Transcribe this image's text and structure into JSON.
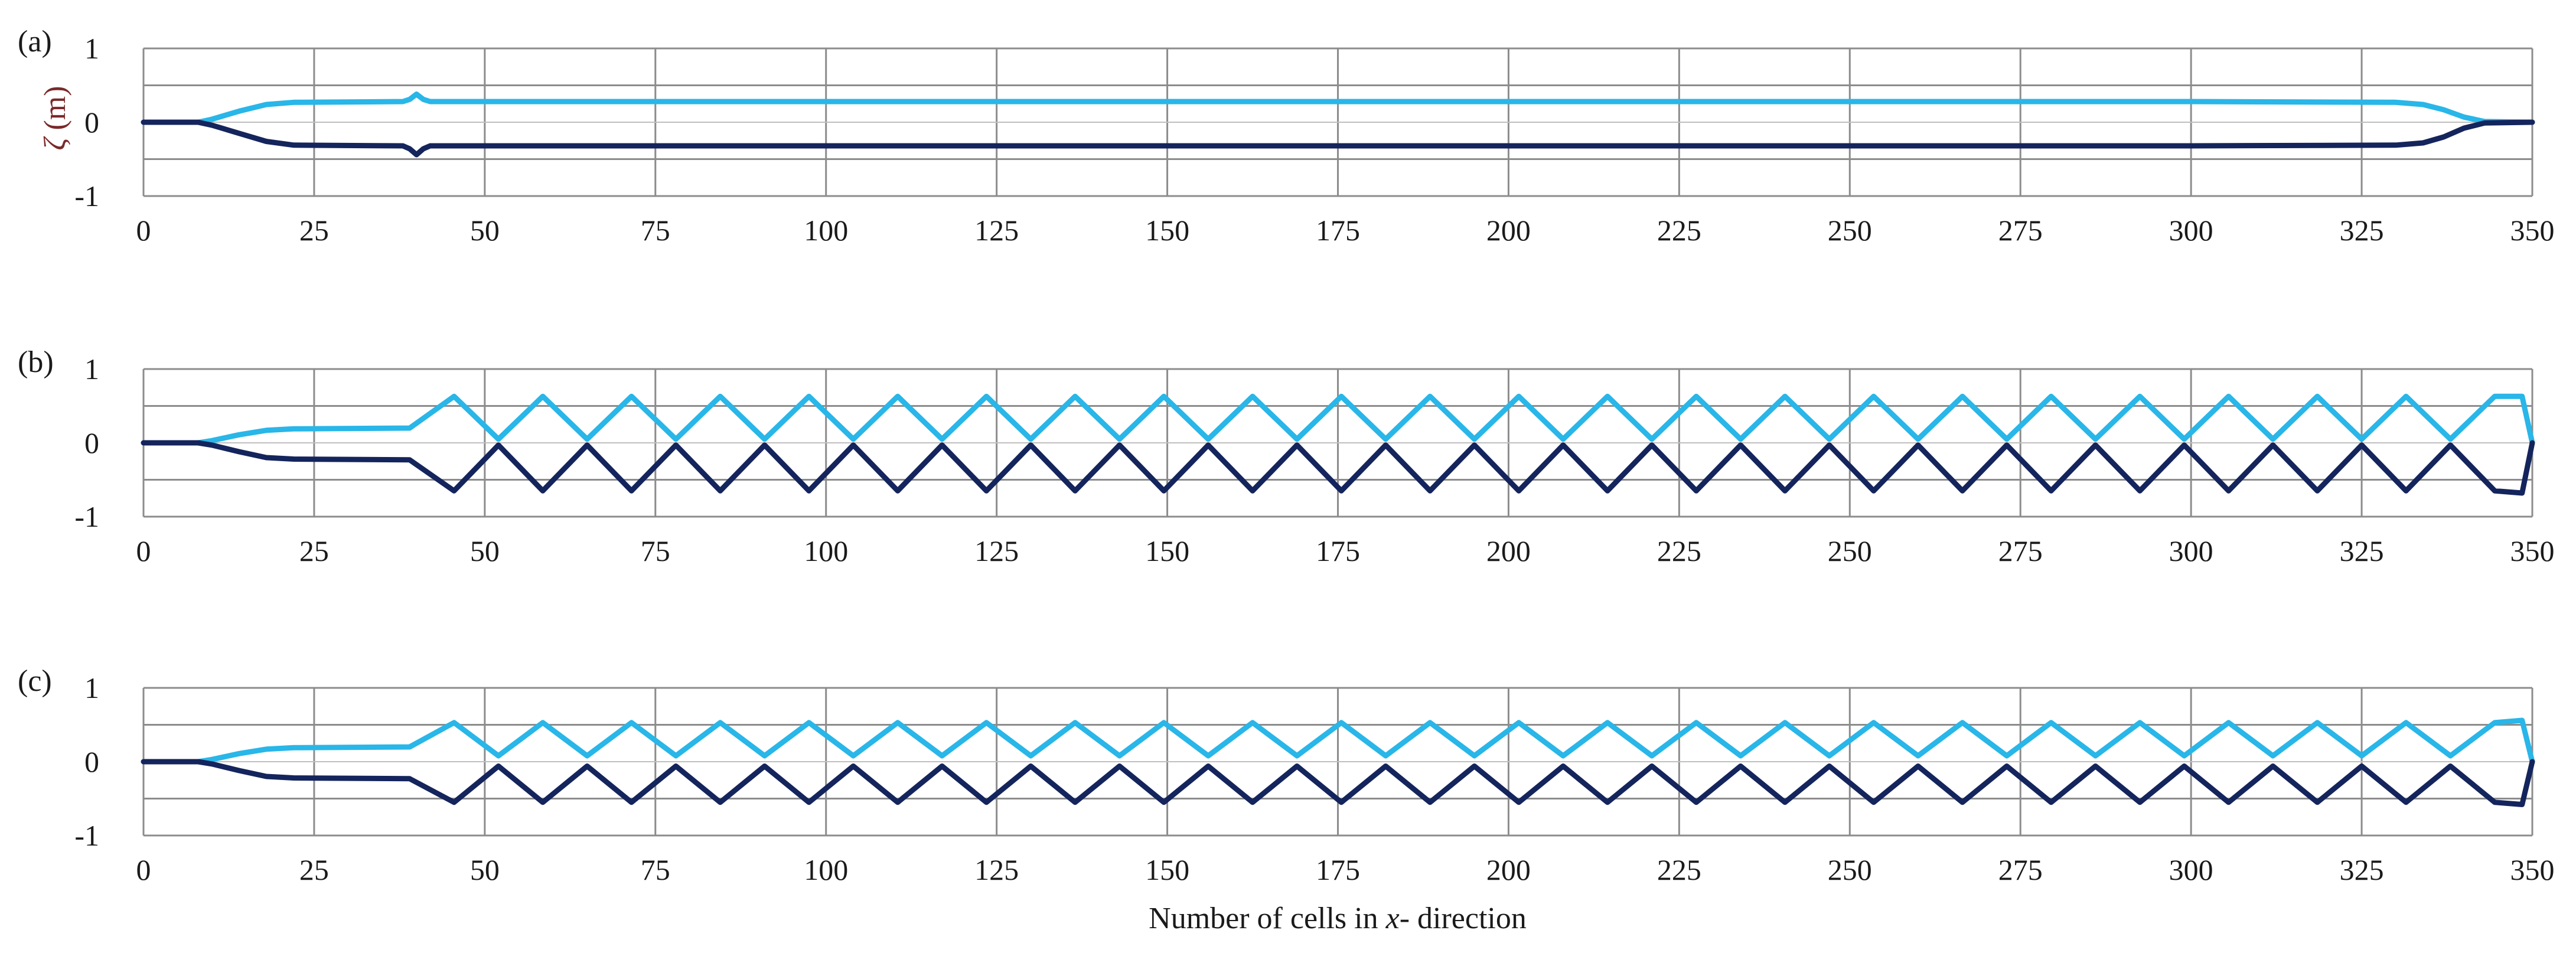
{
  "figure": {
    "xlabel_pre": "Number of cells in ",
    "xlabel_var": "x",
    "xlabel_post": "- direction",
    "ylabel_var": "ζ",
    "ylabel_unit": " (m)"
  },
  "chart_data": [
    {
      "type": "line",
      "panel_label": "(a)",
      "ylabel": "ζ (m)",
      "xlim": [
        0,
        350
      ],
      "ylim": [
        -1,
        1
      ],
      "xticks": [
        "0",
        "25",
        "50",
        "75",
        "100",
        "125",
        "150",
        "175",
        "200",
        "225",
        "250",
        "275",
        "300",
        "325",
        "350"
      ],
      "yticks": [
        "1",
        "0",
        "-1"
      ],
      "grid": {
        "x_step": 25,
        "y_lines": [
          1,
          0.5,
          -0.5,
          -1
        ]
      },
      "colors": {
        "upper": "#29b6e8",
        "lower": "#14245c"
      },
      "series": [
        {
          "role": "upper",
          "x": [
            0,
            8,
            10,
            14,
            18,
            22,
            38,
            39,
            40,
            41,
            42,
            100,
            200,
            300,
            330,
            334,
            337,
            340,
            343,
            350
          ],
          "y": [
            0,
            0,
            0.04,
            0.15,
            0.24,
            0.27,
            0.28,
            0.31,
            0.38,
            0.31,
            0.28,
            0.28,
            0.28,
            0.28,
            0.27,
            0.24,
            0.17,
            0.07,
            0.01,
            0
          ]
        },
        {
          "role": "lower",
          "x": [
            0,
            8,
            10,
            14,
            18,
            22,
            38,
            39,
            40,
            41,
            42,
            100,
            200,
            300,
            330,
            334,
            337,
            340,
            343,
            350
          ],
          "y": [
            0,
            0,
            -0.04,
            -0.15,
            -0.26,
            -0.31,
            -0.32,
            -0.36,
            -0.44,
            -0.36,
            -0.32,
            -0.32,
            -0.32,
            -0.32,
            -0.31,
            -0.28,
            -0.2,
            -0.08,
            -0.01,
            0
          ]
        }
      ]
    },
    {
      "type": "line",
      "panel_label": "(b)",
      "xlim": [
        0,
        350
      ],
      "ylim": [
        -1,
        1
      ],
      "xticks": [
        "0",
        "25",
        "50",
        "75",
        "100",
        "125",
        "150",
        "175",
        "200",
        "225",
        "250",
        "275",
        "300",
        "325",
        "350"
      ],
      "yticks": [
        "1",
        "0",
        "-1"
      ],
      "grid": {
        "x_step": 25,
        "y_lines": [
          1,
          0.5,
          -0.5,
          -1
        ]
      },
      "colors": {
        "upper": "#29b6e8",
        "lower": "#14245c"
      },
      "series": [
        {
          "role": "upper",
          "x": [
            0,
            8,
            10,
            14,
            18,
            22,
            39,
            45.5,
            52,
            58.5,
            65,
            71.5,
            78,
            84.5,
            91,
            97.5,
            104,
            110.5,
            117,
            123.5,
            130,
            136.5,
            143,
            149.5,
            156,
            162.5,
            169,
            175.5,
            182,
            188.5,
            195,
            201.5,
            208,
            214.5,
            221,
            227.5,
            234,
            240.5,
            247,
            253.5,
            260,
            266.5,
            273,
            279.5,
            286,
            292.5,
            299,
            305.5,
            312,
            318.5,
            325,
            331.5,
            338,
            344.5,
            348.5,
            350
          ],
          "y": [
            0,
            0,
            0.03,
            0.11,
            0.17,
            0.19,
            0.2,
            0.63,
            0.05,
            0.63,
            0.05,
            0.63,
            0.05,
            0.63,
            0.05,
            0.63,
            0.05,
            0.63,
            0.05,
            0.63,
            0.05,
            0.63,
            0.05,
            0.63,
            0.05,
            0.63,
            0.05,
            0.63,
            0.05,
            0.63,
            0.05,
            0.63,
            0.05,
            0.63,
            0.05,
            0.63,
            0.05,
            0.63,
            0.05,
            0.63,
            0.05,
            0.63,
            0.05,
            0.63,
            0.05,
            0.63,
            0.05,
            0.63,
            0.05,
            0.63,
            0.05,
            0.63,
            0.05,
            0.63,
            0.63,
            0.0
          ]
        },
        {
          "role": "lower",
          "x": [
            0,
            8,
            10,
            14,
            18,
            22,
            39,
            45.5,
            52,
            58.5,
            65,
            71.5,
            78,
            84.5,
            91,
            97.5,
            104,
            110.5,
            117,
            123.5,
            130,
            136.5,
            143,
            149.5,
            156,
            162.5,
            169,
            175.5,
            182,
            188.5,
            195,
            201.5,
            208,
            214.5,
            221,
            227.5,
            234,
            240.5,
            247,
            253.5,
            260,
            266.5,
            273,
            279.5,
            286,
            292.5,
            299,
            305.5,
            312,
            318.5,
            325,
            331.5,
            338,
            344.5,
            348.5,
            350
          ],
          "y": [
            0,
            0,
            -0.03,
            -0.12,
            -0.2,
            -0.22,
            -0.23,
            -0.65,
            -0.03,
            -0.65,
            -0.03,
            -0.65,
            -0.03,
            -0.65,
            -0.03,
            -0.65,
            -0.03,
            -0.65,
            -0.03,
            -0.65,
            -0.03,
            -0.65,
            -0.03,
            -0.65,
            -0.03,
            -0.65,
            -0.03,
            -0.65,
            -0.03,
            -0.65,
            -0.03,
            -0.65,
            -0.03,
            -0.65,
            -0.03,
            -0.65,
            -0.03,
            -0.65,
            -0.03,
            -0.65,
            -0.03,
            -0.65,
            -0.03,
            -0.65,
            -0.03,
            -0.65,
            -0.03,
            -0.65,
            -0.03,
            -0.65,
            -0.03,
            -0.65,
            -0.03,
            -0.65,
            -0.68,
            0.0
          ]
        }
      ]
    },
    {
      "type": "line",
      "panel_label": "(c)",
      "xlim": [
        0,
        350
      ],
      "ylim": [
        -1,
        1
      ],
      "xticks": [
        "0",
        "25",
        "50",
        "75",
        "100",
        "125",
        "150",
        "175",
        "200",
        "225",
        "250",
        "275",
        "300",
        "325",
        "350"
      ],
      "yticks": [
        "1",
        "0",
        "-1"
      ],
      "grid": {
        "x_step": 25,
        "y_lines": [
          1,
          0.5,
          -0.5,
          -1
        ]
      },
      "colors": {
        "upper": "#29b6e8",
        "lower": "#14245c"
      },
      "series": [
        {
          "role": "upper",
          "x": [
            0,
            8,
            10,
            14,
            18,
            22,
            39,
            45.5,
            52,
            58.5,
            65,
            71.5,
            78,
            84.5,
            91,
            97.5,
            104,
            110.5,
            117,
            123.5,
            130,
            136.5,
            143,
            149.5,
            156,
            162.5,
            169,
            175.5,
            182,
            188.5,
            195,
            201.5,
            208,
            214.5,
            221,
            227.5,
            234,
            240.5,
            247,
            253.5,
            260,
            266.5,
            273,
            279.5,
            286,
            292.5,
            299,
            305.5,
            312,
            318.5,
            325,
            331.5,
            338,
            344.5,
            348.5,
            350
          ],
          "y": [
            0,
            0,
            0.03,
            0.11,
            0.17,
            0.19,
            0.2,
            0.53,
            0.08,
            0.53,
            0.08,
            0.53,
            0.08,
            0.53,
            0.08,
            0.53,
            0.08,
            0.53,
            0.08,
            0.53,
            0.08,
            0.53,
            0.08,
            0.53,
            0.08,
            0.53,
            0.08,
            0.53,
            0.08,
            0.53,
            0.08,
            0.53,
            0.08,
            0.53,
            0.08,
            0.53,
            0.08,
            0.53,
            0.08,
            0.53,
            0.08,
            0.53,
            0.08,
            0.53,
            0.08,
            0.53,
            0.08,
            0.53,
            0.08,
            0.53,
            0.08,
            0.53,
            0.08,
            0.53,
            0.56,
            0.0
          ]
        },
        {
          "role": "lower",
          "x": [
            0,
            8,
            10,
            14,
            18,
            22,
            39,
            45.5,
            52,
            58.5,
            65,
            71.5,
            78,
            84.5,
            91,
            97.5,
            104,
            110.5,
            117,
            123.5,
            130,
            136.5,
            143,
            149.5,
            156,
            162.5,
            169,
            175.5,
            182,
            188.5,
            195,
            201.5,
            208,
            214.5,
            221,
            227.5,
            234,
            240.5,
            247,
            253.5,
            260,
            266.5,
            273,
            279.5,
            286,
            292.5,
            299,
            305.5,
            312,
            318.5,
            325,
            331.5,
            338,
            344.5,
            348.5,
            350
          ],
          "y": [
            0,
            0,
            -0.03,
            -0.12,
            -0.2,
            -0.22,
            -0.23,
            -0.55,
            -0.06,
            -0.55,
            -0.06,
            -0.55,
            -0.06,
            -0.55,
            -0.06,
            -0.55,
            -0.06,
            -0.55,
            -0.06,
            -0.55,
            -0.06,
            -0.55,
            -0.06,
            -0.55,
            -0.06,
            -0.55,
            -0.06,
            -0.55,
            -0.06,
            -0.55,
            -0.06,
            -0.55,
            -0.06,
            -0.55,
            -0.06,
            -0.55,
            -0.06,
            -0.55,
            -0.06,
            -0.55,
            -0.06,
            -0.55,
            -0.06,
            -0.55,
            -0.06,
            -0.55,
            -0.06,
            -0.55,
            -0.06,
            -0.55,
            -0.06,
            -0.55,
            -0.06,
            -0.55,
            -0.58,
            0.0
          ]
        }
      ]
    }
  ]
}
